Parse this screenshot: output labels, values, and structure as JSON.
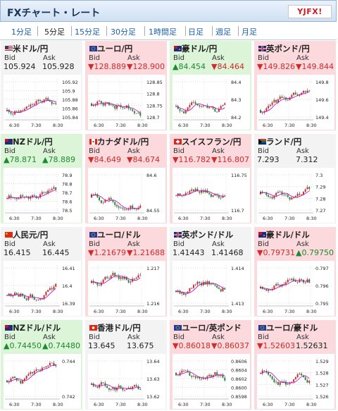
{
  "header": {
    "title": "FXチャート・レート",
    "logo": "YJFX!"
  },
  "tabs": [
    "1分足",
    "5分足",
    "15分足",
    "30分足",
    "1時間足",
    "日足",
    "週足",
    "月足"
  ],
  "active_tab": 1,
  "bid_label": "Bid",
  "ask_label": "Ask",
  "time_labels": [
    "6:30",
    "7:30",
    "8:30"
  ],
  "colors": {
    "up": "#d22b2b",
    "down": "#2a8a3a",
    "ma": "#c000c0",
    "bg_down": "#fbd9dc",
    "bg_up": "#dcf4d8"
  },
  "cells": [
    {
      "pair": "米ドル/円",
      "status": "flat",
      "bid": "105.924",
      "ask": "105.928",
      "bid_arrow": "",
      "ask_arrow": "",
      "flag": "us",
      "trend": 1,
      "yticks": [
        "105.92",
        "105.9",
        "105.88",
        "105.86",
        "105.84"
      ]
    },
    {
      "pair": "ユーロ/円",
      "status": "down",
      "bid": "128.889",
      "ask": "128.900",
      "bid_arrow": "▼",
      "ask_arrow": "▼",
      "flag": "eu",
      "trend": 0.3,
      "yticks": [
        "128.85",
        "128.8",
        "128.75",
        "128.7"
      ]
    },
    {
      "pair": "豪ドル/円",
      "status": "up",
      "bid": "84.454",
      "ask": "84.464",
      "bid_arrow": "▲",
      "ask_arrow": "▼",
      "bid_color": "green",
      "ask_color": "red",
      "flag": "au",
      "trend": 0.6,
      "yticks": [
        "84.4",
        "84.3",
        "84.2"
      ]
    },
    {
      "pair": "英ポンド/円",
      "status": "down",
      "bid": "149.826",
      "ask": "149.844",
      "bid_arrow": "▼",
      "ask_arrow": "▼",
      "flag": "gb",
      "trend": 0.9,
      "yticks": [
        "149.8",
        "149.6",
        "149.4"
      ]
    },
    {
      "pair": "NZドル/円",
      "status": "up",
      "bid": "78.871",
      "ask": "78.889",
      "bid_arrow": "▲",
      "ask_arrow": "▲",
      "flag": "nz",
      "trend": 0.5,
      "yticks": [
        "78.9",
        "78.8",
        "78.7",
        "78.6",
        "78.5"
      ]
    },
    {
      "pair": "カナダドル/円",
      "status": "down",
      "bid": "84.649",
      "ask": "84.674",
      "bid_arrow": "▼",
      "ask_arrow": "▼",
      "flag": "ca",
      "trend": 0.4,
      "yticks": [
        "84.6",
        "84.55"
      ]
    },
    {
      "pair": "スイスフラン/円",
      "status": "down",
      "bid": "116.782",
      "ask": "116.807",
      "bid_arrow": "▼",
      "ask_arrow": "▼",
      "flag": "ch",
      "trend": 0.2,
      "yticks": [
        "116.75",
        "116.7"
      ]
    },
    {
      "pair": "ランド/円",
      "status": "flat",
      "bid": "7.293",
      "ask": "7.312",
      "bid_arrow": "",
      "ask_arrow": "",
      "flag": "za",
      "trend": 0.1,
      "yticks": [
        "7.3",
        "7.29",
        "7.28",
        "7.27"
      ]
    },
    {
      "pair": "人民元/円",
      "status": "flat",
      "bid": "16.415",
      "ask": "16.445",
      "bid_arrow": "",
      "ask_arrow": "",
      "flag": "cn",
      "trend": 0.8,
      "yticks": [
        "16.41",
        "16.4",
        "16.39"
      ]
    },
    {
      "pair": "ユーロ/ドル",
      "status": "down",
      "bid": "1.21679",
      "ask": "1.21688",
      "bid_arrow": "▼",
      "ask_arrow": "▼",
      "flag": "eu",
      "trend": -0.3,
      "yticks": [
        "1.217",
        "1.216"
      ]
    },
    {
      "pair": "英ポンド/ドル",
      "status": "flat",
      "bid": "1.41443",
      "ask": "1.41468",
      "bid_arrow": "",
      "ask_arrow": "",
      "flag": "gb",
      "trend": 0.4,
      "yticks": [
        "1.414",
        "1.413"
      ]
    },
    {
      "pair": "豪ドル/ドル",
      "status": "down",
      "bid": "0.79731",
      "ask": "0.79750",
      "bid_arrow": "▼",
      "ask_arrow": "▲",
      "bid_color": "red",
      "ask_color": "green",
      "flag": "au",
      "trend": 0.2,
      "yticks": [
        "0.797",
        "0.796",
        "0.795"
      ]
    },
    {
      "pair": "NZドル/ドル",
      "status": "up",
      "bid": "0.74450",
      "ask": "0.74480",
      "bid_arrow": "▲",
      "ask_arrow": "▲",
      "flag": "nz",
      "trend": 0.1,
      "yticks": [
        "0.744",
        "0.742"
      ]
    },
    {
      "pair": "香港ドル/円",
      "status": "flat",
      "bid": "13.645",
      "ask": "13.675",
      "bid_arrow": "",
      "ask_arrow": "",
      "flag": "hk",
      "trend": 0.5,
      "yticks": [
        "13.64",
        "13.63",
        "13.62"
      ]
    },
    {
      "pair": "ユーロ/英ポンド",
      "status": "down",
      "bid": "0.86018",
      "ask": "0.86037",
      "bid_arrow": "▼",
      "ask_arrow": "▼",
      "flag": "eu",
      "trend": -0.6,
      "yticks": [
        "0.8606",
        "0.8604",
        "0.8602",
        "0.8600",
        "0.8598"
      ]
    },
    {
      "pair": "ユーロ/豪ドル",
      "status": "down",
      "bid": "1.52603",
      "ask": "1.52631",
      "bid_arrow": "▼",
      "ask_arrow": "",
      "ask_color": "black",
      "flag": "eu",
      "trend": -0.5,
      "yticks": [
        "1.529",
        "1.528",
        "1.527",
        "1.526"
      ]
    }
  ]
}
